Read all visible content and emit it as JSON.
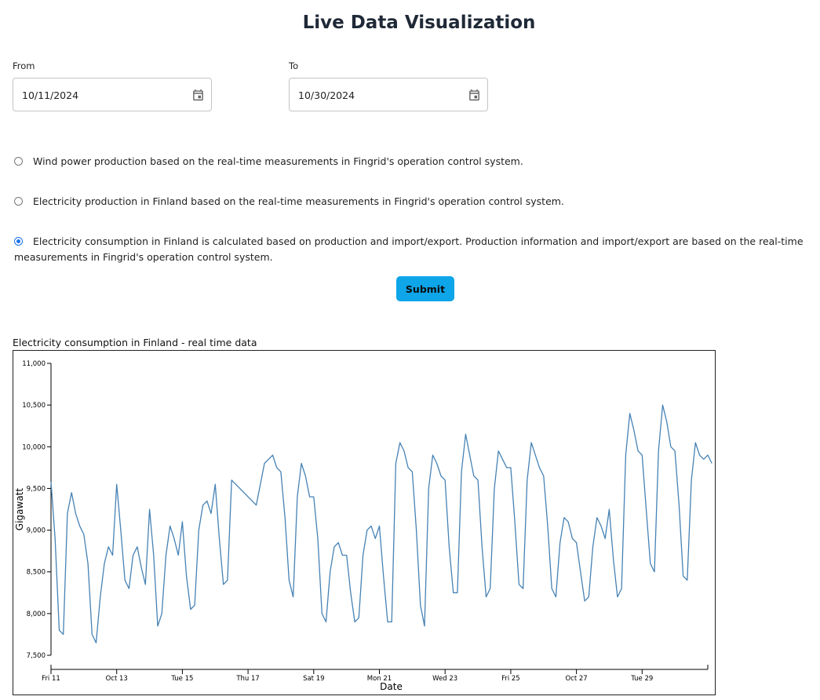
{
  "page": {
    "title": "Live Data Visualization"
  },
  "form": {
    "from": {
      "label": "From",
      "value": "10/11/2024"
    },
    "to": {
      "label": "To",
      "value": "10/30/2024"
    },
    "options": [
      {
        "text": "Wind power production based on the real-time measurements in Fingrid's operation control system.",
        "checked": false
      },
      {
        "text": "Electricity production in Finland based on the real-time measurements in Fingrid's operation control system.",
        "checked": false
      },
      {
        "text": "Electricity consumption in Finland is calculated based on production and import/export. Production information and import/export are based on the real-time measurements in Fingrid's operation control system.",
        "checked": true
      }
    ],
    "submit_label": "Submit"
  },
  "chart_data": {
    "type": "line",
    "title": "Electricity consumption in Finland - real time data",
    "xlabel": "Date",
    "ylabel": "Gigawatt",
    "ylim": [
      7500,
      11000
    ],
    "yticks": [
      "7,500",
      "8,000",
      "8,500",
      "9,000",
      "9,500",
      "10,000",
      "10,500",
      "11,000"
    ],
    "xtick_labels": [
      "Fri 11",
      "Oct 13",
      "Tue 15",
      "Thu 17",
      "Sat 19",
      "Mon 21",
      "Wed 23",
      "Fri 25",
      "Oct 27",
      "Tue 29"
    ],
    "x_range": [
      "2024-10-11",
      "2024-10-31"
    ],
    "line_color": "#4682b4",
    "series": [
      {
        "x": [
          "2024-10-11T00:00",
          "2024-10-11T03:00",
          "2024-10-11T06:00",
          "2024-10-11T09:00",
          "2024-10-11T12:00",
          "2024-10-11T15:00",
          "2024-10-11T18:00",
          "2024-10-11T21:00",
          "2024-10-12T00:00",
          "2024-10-12T03:00",
          "2024-10-12T06:00",
          "2024-10-12T09:00",
          "2024-10-12T12:00",
          "2024-10-12T15:00",
          "2024-10-12T18:00",
          "2024-10-12T21:00",
          "2024-10-13T00:00",
          "2024-10-13T03:00",
          "2024-10-13T06:00",
          "2024-10-13T09:00",
          "2024-10-13T12:00",
          "2024-10-13T15:00",
          "2024-10-13T18:00",
          "2024-10-13T21:00",
          "2024-10-14T00:00",
          "2024-10-14T03:00",
          "2024-10-14T06:00",
          "2024-10-14T09:00",
          "2024-10-14T12:00",
          "2024-10-14T15:00",
          "2024-10-14T18:00",
          "2024-10-14T21:00",
          "2024-10-15T00:00",
          "2024-10-15T03:00",
          "2024-10-15T06:00",
          "2024-10-15T09:00",
          "2024-10-15T12:00",
          "2024-10-15T15:00",
          "2024-10-15T18:00",
          "2024-10-15T21:00",
          "2024-10-16T00:00",
          "2024-10-16T03:00",
          "2024-10-16T06:00",
          "2024-10-16T09:00",
          "2024-10-16T12:00",
          "2024-10-17T06:00",
          "2024-10-17T09:00",
          "2024-10-17T12:00",
          "2024-10-17T15:00",
          "2024-10-17T18:00",
          "2024-10-17T21:00",
          "2024-10-18T00:00",
          "2024-10-18T03:00",
          "2024-10-18T06:00",
          "2024-10-18T09:00",
          "2024-10-18T12:00",
          "2024-10-18T15:00",
          "2024-10-18T18:00",
          "2024-10-18T21:00",
          "2024-10-19T00:00",
          "2024-10-19T03:00",
          "2024-10-19T06:00",
          "2024-10-19T09:00",
          "2024-10-19T12:00",
          "2024-10-19T15:00",
          "2024-10-19T18:00",
          "2024-10-19T21:00",
          "2024-10-20T00:00",
          "2024-10-20T03:00",
          "2024-10-20T06:00",
          "2024-10-20T09:00",
          "2024-10-20T12:00",
          "2024-10-20T15:00",
          "2024-10-20T18:00",
          "2024-10-20T21:00",
          "2024-10-21T00:00",
          "2024-10-21T03:00",
          "2024-10-21T06:00",
          "2024-10-21T09:00",
          "2024-10-21T12:00",
          "2024-10-21T15:00",
          "2024-10-21T18:00",
          "2024-10-21T21:00",
          "2024-10-22T00:00",
          "2024-10-22T03:00",
          "2024-10-22T06:00",
          "2024-10-22T09:00",
          "2024-10-22T12:00",
          "2024-10-22T15:00",
          "2024-10-22T18:00",
          "2024-10-22T21:00",
          "2024-10-23T00:00",
          "2024-10-23T03:00",
          "2024-10-23T06:00",
          "2024-10-23T09:00",
          "2024-10-23T12:00",
          "2024-10-23T15:00",
          "2024-10-23T18:00",
          "2024-10-23T21:00",
          "2024-10-24T00:00",
          "2024-10-24T03:00",
          "2024-10-24T06:00",
          "2024-10-24T09:00",
          "2024-10-24T12:00",
          "2024-10-24T15:00",
          "2024-10-24T18:00",
          "2024-10-24T21:00",
          "2024-10-25T00:00",
          "2024-10-25T03:00",
          "2024-10-25T06:00",
          "2024-10-25T09:00",
          "2024-10-25T12:00",
          "2024-10-25T15:00",
          "2024-10-25T18:00",
          "2024-10-25T21:00",
          "2024-10-26T00:00",
          "2024-10-26T03:00",
          "2024-10-26T06:00",
          "2024-10-26T09:00",
          "2024-10-26T12:00",
          "2024-10-26T15:00",
          "2024-10-26T18:00",
          "2024-10-26T21:00",
          "2024-10-27T00:00",
          "2024-10-27T03:00",
          "2024-10-27T06:00",
          "2024-10-27T09:00",
          "2024-10-27T12:00",
          "2024-10-27T15:00",
          "2024-10-27T18:00",
          "2024-10-27T21:00",
          "2024-10-28T00:00",
          "2024-10-28T03:00",
          "2024-10-28T06:00",
          "2024-10-28T09:00",
          "2024-10-28T12:00",
          "2024-10-28T15:00",
          "2024-10-28T18:00",
          "2024-10-28T21:00",
          "2024-10-29T00:00",
          "2024-10-29T03:00",
          "2024-10-29T06:00",
          "2024-10-29T09:00",
          "2024-10-29T12:00",
          "2024-10-29T15:00",
          "2024-10-29T18:00",
          "2024-10-29T21:00",
          "2024-10-30T00:00",
          "2024-10-30T03:00",
          "2024-10-30T06:00",
          "2024-10-30T09:00",
          "2024-10-30T12:00",
          "2024-10-30T15:00",
          "2024-10-30T18:00",
          "2024-10-30T21:00",
          "2024-10-31T00:00",
          "2024-10-31T03:00"
        ],
        "values": [
          9580,
          8900,
          7800,
          7750,
          9200,
          9450,
          9200,
          9050,
          8950,
          8600,
          7750,
          7650,
          8200,
          8600,
          8800,
          8700,
          9550,
          9000,
          8400,
          8300,
          8700,
          8800,
          8550,
          8350,
          9250,
          8700,
          7850,
          8000,
          8700,
          9050,
          8900,
          8700,
          9100,
          8450,
          8050,
          8100,
          9000,
          9300,
          9350,
          9200,
          9550,
          8900,
          8350,
          8400,
          9600,
          9300,
          9550,
          9800,
          9850,
          9900,
          9750,
          9700,
          9150,
          8400,
          8200,
          9400,
          9800,
          9650,
          9400,
          9400,
          8900,
          8000,
          7900,
          8500,
          8800,
          8850,
          8700,
          8700,
          8250,
          7900,
          7950,
          8700,
          9000,
          9050,
          8900,
          9050,
          8450,
          7900,
          7900,
          9800,
          10050,
          9950,
          9750,
          9700,
          9000,
          8100,
          7850,
          9500,
          9900,
          9800,
          9650,
          9600,
          8800,
          8250,
          8250,
          9700,
          10150,
          9900,
          9650,
          9600,
          8800,
          8200,
          8300,
          9500,
          9950,
          9850,
          9750,
          9750,
          9100,
          8350,
          8300,
          9600,
          10050,
          9900,
          9750,
          9650,
          9050,
          8300,
          8200,
          8850,
          9150,
          9100,
          8900,
          8850,
          8500,
          8150,
          8200,
          8800,
          9150,
          9050,
          8900,
          9250,
          8650,
          8200,
          8300,
          9900,
          10400,
          10200,
          9950,
          9900,
          9250,
          8600,
          8500,
          9950,
          10500,
          10300,
          10000,
          9950,
          9300,
          8450,
          8400,
          9600,
          10050,
          9900,
          9850,
          9900,
          9800
        ]
      }
    ]
  }
}
